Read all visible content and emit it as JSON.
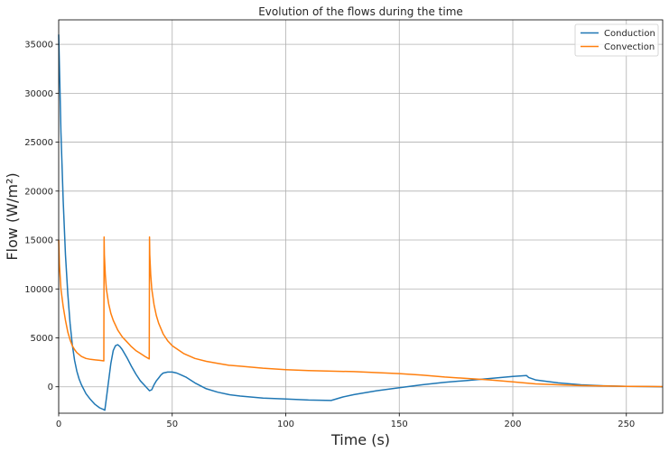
{
  "chart_data": {
    "type": "line",
    "title": "Evolution of the flows during the time",
    "xlabel": "Time (s)",
    "ylabel": "Flow (W/m²)",
    "xlim": [
      0,
      266
    ],
    "ylim": [
      -2700,
      37500
    ],
    "xticks": [
      0,
      50,
      100,
      150,
      200,
      250
    ],
    "yticks": [
      0,
      5000,
      10000,
      15000,
      20000,
      25000,
      30000,
      35000
    ],
    "grid": true,
    "legend_position": "top-right",
    "series": [
      {
        "name": "Conduction",
        "color": "#1f77b4",
        "x": [
          0,
          0.5,
          1,
          2,
          3,
          4,
          5,
          6,
          7,
          8,
          9,
          10,
          12,
          14,
          16,
          18,
          20,
          20.3,
          21,
          22,
          23,
          24,
          25,
          26,
          27,
          28,
          30,
          32,
          34,
          36,
          38,
          40,
          41,
          42,
          43,
          44,
          45,
          46,
          48,
          50,
          52,
          54,
          56,
          60,
          65,
          70,
          75,
          80,
          90,
          100,
          110,
          120,
          125,
          130,
          140,
          150,
          160,
          170,
          180,
          190,
          200,
          206,
          207,
          210,
          220,
          230,
          240,
          250,
          260,
          266
        ],
        "y": [
          36000,
          31000,
          26000,
          19000,
          13500,
          9500,
          6500,
          4300,
          2700,
          1600,
          800,
          200,
          -700,
          -1300,
          -1800,
          -2150,
          -2350,
          -2400,
          -1200,
          600,
          2400,
          3700,
          4200,
          4300,
          4100,
          3800,
          3000,
          2100,
          1300,
          600,
          100,
          -400,
          -300,
          200,
          600,
          900,
          1200,
          1400,
          1500,
          1500,
          1400,
          1200,
          1000,
          400,
          -200,
          -550,
          -800,
          -950,
          -1150,
          -1250,
          -1350,
          -1400,
          -1050,
          -800,
          -400,
          -100,
          200,
          450,
          650,
          850,
          1050,
          1150,
          950,
          700,
          400,
          200,
          100,
          50,
          20,
          0
        ]
      },
      {
        "name": "Convection",
        "color": "#ff7f0e",
        "x": [
          0,
          0.3,
          1,
          2,
          3,
          4,
          5,
          6,
          7,
          8,
          10,
          12,
          14,
          16,
          18,
          19.9,
          20,
          20.1,
          20.5,
          21,
          22,
          23,
          24,
          26,
          28,
          30,
          32,
          34,
          36,
          38,
          39.9,
          40,
          40.1,
          40.5,
          41,
          42,
          43,
          44,
          46,
          48,
          50,
          55,
          60,
          65,
          70,
          75,
          80,
          90,
          100,
          110,
          120,
          130,
          140,
          150,
          160,
          170,
          180,
          190,
          200,
          210,
          220,
          230,
          240,
          250,
          260,
          266
        ],
        "y": [
          15000,
          12500,
          10000,
          8200,
          6800,
          5600,
          4800,
          4200,
          3800,
          3500,
          3100,
          2900,
          2800,
          2750,
          2700,
          2650,
          15300,
          13500,
          11500,
          10000,
          8500,
          7500,
          6800,
          5800,
          5100,
          4600,
          4100,
          3700,
          3400,
          3100,
          2850,
          15300,
          13500,
          11500,
          10000,
          8400,
          7300,
          6500,
          5400,
          4700,
          4200,
          3400,
          2900,
          2600,
          2400,
          2200,
          2100,
          1900,
          1750,
          1650,
          1600,
          1550,
          1450,
          1350,
          1200,
          1000,
          850,
          700,
          500,
          300,
          200,
          120,
          80,
          50,
          30,
          20
        ]
      }
    ]
  }
}
